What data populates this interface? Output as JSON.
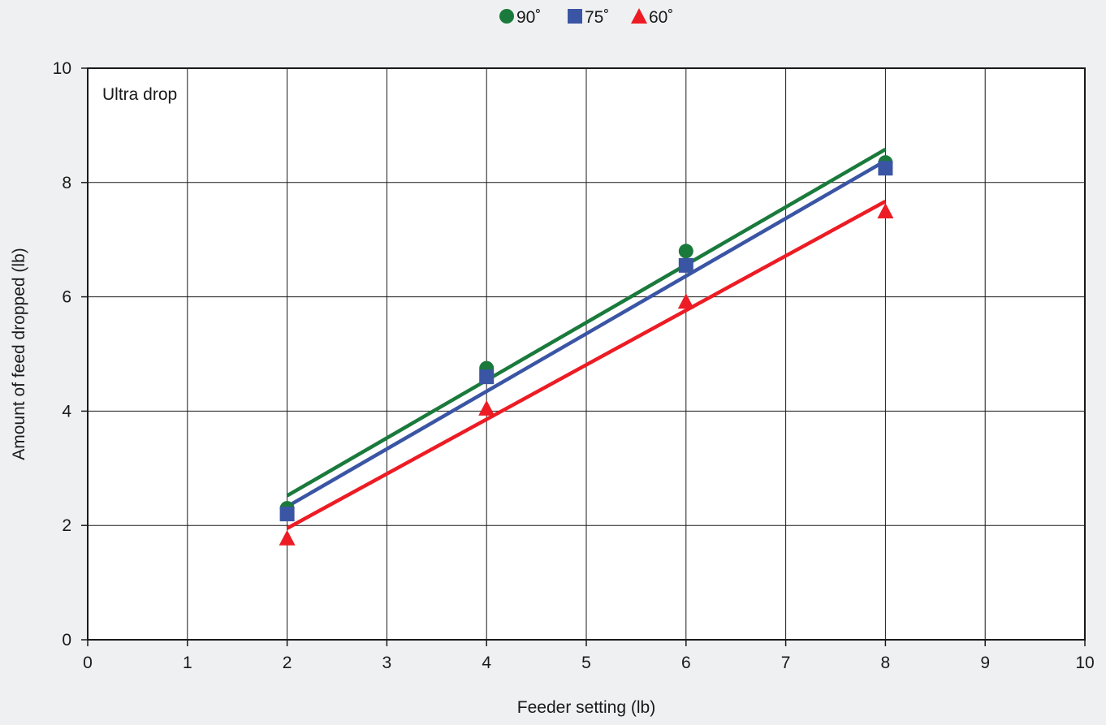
{
  "chart_data": {
    "type": "scatter",
    "annotation": "Ultra drop",
    "xlabel": "Feeder setting (lb)",
    "ylabel": "Amount of feed dropped (lb)",
    "xlim": [
      0,
      10
    ],
    "ylim": [
      0,
      10
    ],
    "x_ticks": [
      0,
      1,
      2,
      3,
      4,
      5,
      6,
      7,
      8,
      9,
      10
    ],
    "y_ticks": [
      0,
      2,
      4,
      6,
      8,
      10
    ],
    "grid": true,
    "legend_position": "top-center",
    "series": [
      {
        "name": "90˚",
        "color": "#1a7a3c",
        "marker": "circle",
        "x": [
          2,
          4,
          6,
          8
        ],
        "y": [
          2.3,
          4.75,
          6.8,
          8.35
        ],
        "trendline": {
          "x": [
            2,
            8
          ],
          "y": [
            2.52,
            8.58
          ]
        }
      },
      {
        "name": "75˚",
        "color": "#3a55a4",
        "marker": "square",
        "x": [
          2,
          4,
          6,
          8
        ],
        "y": [
          2.2,
          4.6,
          6.55,
          8.25
        ],
        "trendline": {
          "x": [
            2,
            8
          ],
          "y": [
            2.33,
            8.38
          ]
        }
      },
      {
        "name": "60˚",
        "color": "#ed1c24",
        "marker": "triangle",
        "x": [
          2,
          4,
          6,
          8
        ],
        "y": [
          1.78,
          4.05,
          5.92,
          7.5
        ],
        "trendline": {
          "x": [
            2,
            8
          ],
          "y": [
            1.95,
            7.67
          ]
        }
      }
    ]
  }
}
